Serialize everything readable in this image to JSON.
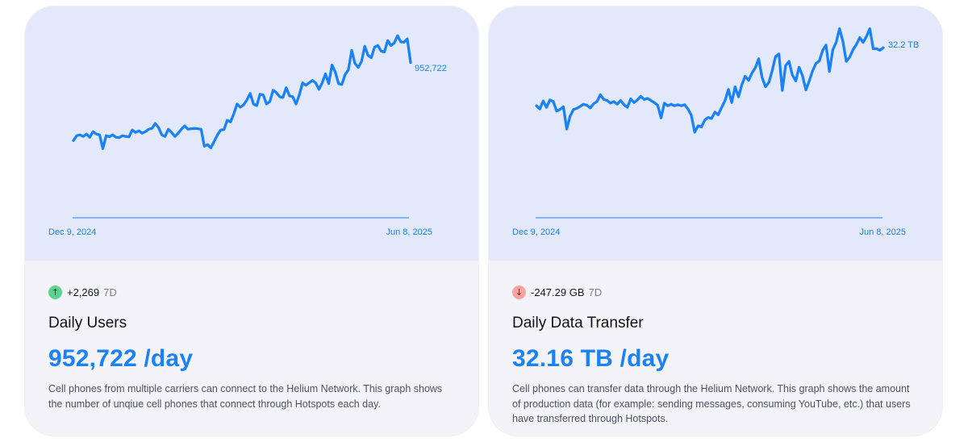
{
  "cards": [
    {
      "delta_value": "+2,269",
      "delta_period": "7D",
      "delta_direction": "up",
      "title": "Daily Users",
      "value": "952,722 /day",
      "description": "Cell phones from multiple carriers can connect to the Helium Network. This graph shows the number of unqiue cell phones that connect through Hotspots each day."
    },
    {
      "delta_value": "-247.29 GB",
      "delta_period": "7D",
      "delta_direction": "down",
      "title": "Daily Data Transfer",
      "value": "32.16 TB /day",
      "description": "Cell phones can transfer data through the Helium Network. This graph shows the amount of production data (for example: sending messages, consuming YouTube, etc.) that users have transferred through Hotspots."
    }
  ],
  "chart_data": [
    {
      "type": "line",
      "x_start_label": "Dec 9, 2024",
      "x_end_label": "Jun 8, 2025",
      "end_label": "952,722",
      "line_color": "#1a82f6",
      "ylim": [
        0,
        1300000
      ],
      "values": [
        475000,
        505000,
        510000,
        500000,
        515000,
        495000,
        530000,
        515000,
        510000,
        425000,
        505000,
        498000,
        510000,
        495000,
        493000,
        505000,
        500000,
        498000,
        540000,
        525000,
        535000,
        520000,
        530000,
        545000,
        550000,
        580000,
        555000,
        510000,
        500000,
        545000,
        525000,
        500000,
        520000,
        545000,
        565000,
        545000,
        548000,
        550000,
        548000,
        545000,
        440000,
        450000,
        430000,
        470000,
        510000,
        540000,
        543000,
        600000,
        590000,
        640000,
        700000,
        680000,
        695000,
        725000,
        765000,
        700000,
        690000,
        760000,
        755000,
        700000,
        715000,
        785000,
        770000,
        745000,
        740000,
        800000,
        750000,
        745000,
        700000,
        755000,
        830000,
        815000,
        830000,
        845000,
        830000,
        790000,
        830000,
        885000,
        825000,
        940000,
        895000,
        825000,
        820000,
        880000,
        910000,
        1030000,
        950000,
        925000,
        960000,
        1055000,
        1000000,
        985000,
        1050000,
        1060000,
        1025000,
        1020000,
        1090000,
        1060000,
        1075000,
        1120000,
        1082000,
        1080000,
        1100000,
        955000
      ]
    },
    {
      "type": "line",
      "x_start_label": "Dec 9, 2024",
      "x_end_label": "Jun 8, 2025",
      "end_label": "32.2 TB",
      "line_color": "#1a82f6",
      "ylim": [
        0,
        40
      ],
      "values": [
        21.2,
        20.6,
        22.1,
        20.9,
        22.3,
        22.0,
        20.2,
        20.5,
        21.0,
        16.8,
        19.2,
        20.5,
        20.7,
        21.1,
        21.5,
        21.3,
        20.8,
        21.6,
        22.0,
        23.3,
        22.4,
        22.2,
        21.7,
        22.0,
        21.5,
        22.2,
        21.4,
        20.9,
        22.5,
        21.8,
        22.3,
        23.0,
        22.4,
        22.6,
        22.2,
        21.8,
        21.3,
        18.9,
        21.7,
        21.2,
        21.5,
        21.2,
        21.4,
        21.2,
        21.4,
        20.6,
        19.4,
        16.2,
        17.4,
        17.2,
        18.5,
        19.0,
        18.8,
        20.0,
        19.5,
        20.9,
        22.2,
        24.3,
        21.8,
        24.8,
        22.9,
        25.2,
        26.8,
        26.0,
        27.4,
        28.4,
        30.1,
        26.6,
        24.8,
        25.6,
        27.8,
        30.5,
        31.0,
        24.1,
        28.8,
        29.6,
        27.0,
        25.9,
        28.5,
        26.9,
        24.2,
        25.9,
        27.8,
        29.2,
        29.7,
        31.7,
        32.7,
        27.7,
        31.8,
        33.2,
        35.8,
        33.4,
        29.6,
        30.4,
        31.8,
        32.8,
        34.1,
        33.2,
        34.3,
        35.8,
        32.0,
        32.0,
        31.7,
        32.2
      ]
    }
  ]
}
